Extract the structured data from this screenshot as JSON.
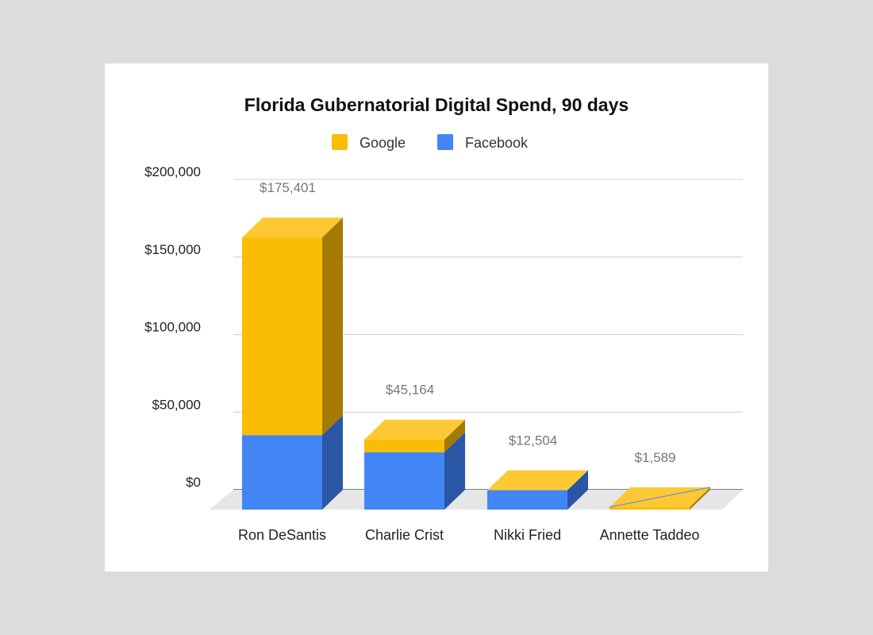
{
  "chart_data": {
    "type": "bar",
    "stacked": true,
    "three_d": true,
    "title": "Florida Gubernatorial Digital Spend, 90 days",
    "xlabel": "",
    "ylabel": "",
    "ylim": [
      0,
      200000
    ],
    "yticks": [
      "$0",
      "$50,000",
      "$100,000",
      "$150,000",
      "$200,000"
    ],
    "ytick_values": [
      0,
      50000,
      100000,
      150000,
      200000
    ],
    "grid": true,
    "legend_position": "top",
    "categories": [
      "Ron DeSantis",
      "Charlie Crist",
      "Nikki Fried",
      "Annette Taddeo"
    ],
    "series": [
      {
        "name": "Facebook",
        "values": [
          48000,
          37000,
          12504,
          0
        ],
        "color": "#4285f4",
        "side_color": "#2a56a6"
      },
      {
        "name": "Google",
        "values": [
          127401,
          8164,
          0,
          1589
        ],
        "color": "#fbbc04",
        "side_color": "#a57a02",
        "top_color": "#fcc934"
      }
    ],
    "totals": [
      175401,
      45164,
      12504,
      1589
    ],
    "data_labels": [
      "$175,401",
      "$45,164",
      "$12,504",
      "$1,589"
    ]
  }
}
